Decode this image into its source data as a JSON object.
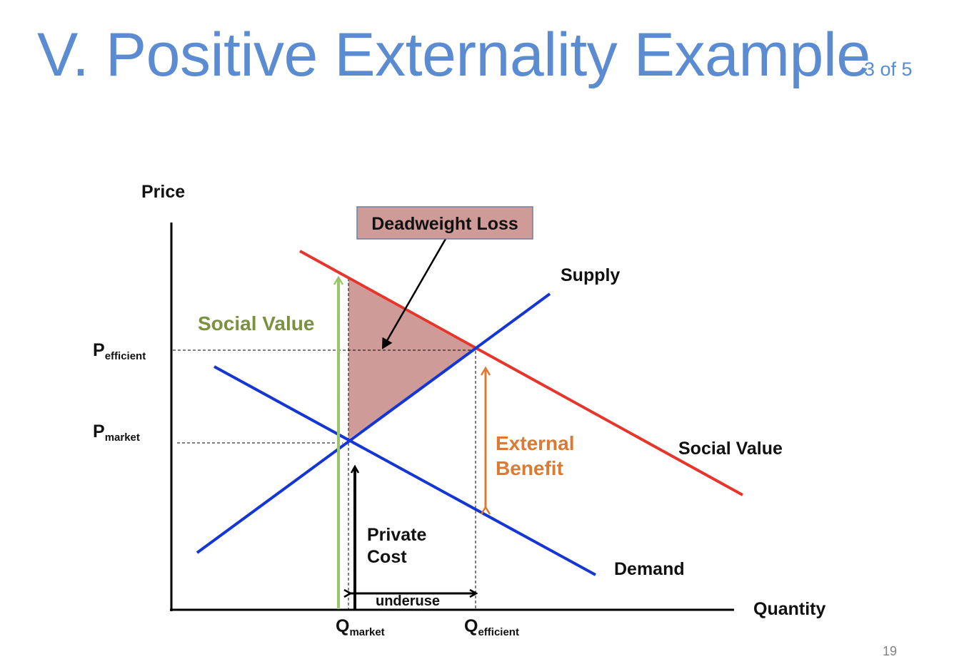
{
  "slide": {
    "title": "V. Positive Externality Example",
    "slide_count": "3 of 5",
    "page_number": "19"
  },
  "diagram": {
    "axis_y_label": "Price",
    "axis_x_label": "Quantity",
    "p_efficient": {
      "base": "P",
      "sub": "efficient"
    },
    "p_market": {
      "base": "P",
      "sub": "market"
    },
    "q_market": {
      "base": "Q",
      "sub": "market"
    },
    "q_efficient": {
      "base": "Q",
      "sub": "efficient"
    },
    "curves": {
      "supply": "Supply",
      "demand": "Demand",
      "social_value": "Social Value"
    },
    "annotations": {
      "deadweight_loss": "Deadweight Loss",
      "social_value": "Social Value",
      "external_benefit_line1": "External",
      "external_benefit_line2": "Benefit",
      "private_cost_line1": "Private",
      "private_cost_line2": "Cost",
      "underuse": "underuse"
    },
    "colors": {
      "supply": "#1436d4",
      "demand": "#1436d4",
      "social_value_curve": "#e8352b",
      "social_value_arrow": "#9bc56a",
      "social_value_text": "#7a9140",
      "external_benefit": "#d97a35",
      "deadweight_fill": "#cf9b98",
      "axes": "#000000"
    }
  }
}
